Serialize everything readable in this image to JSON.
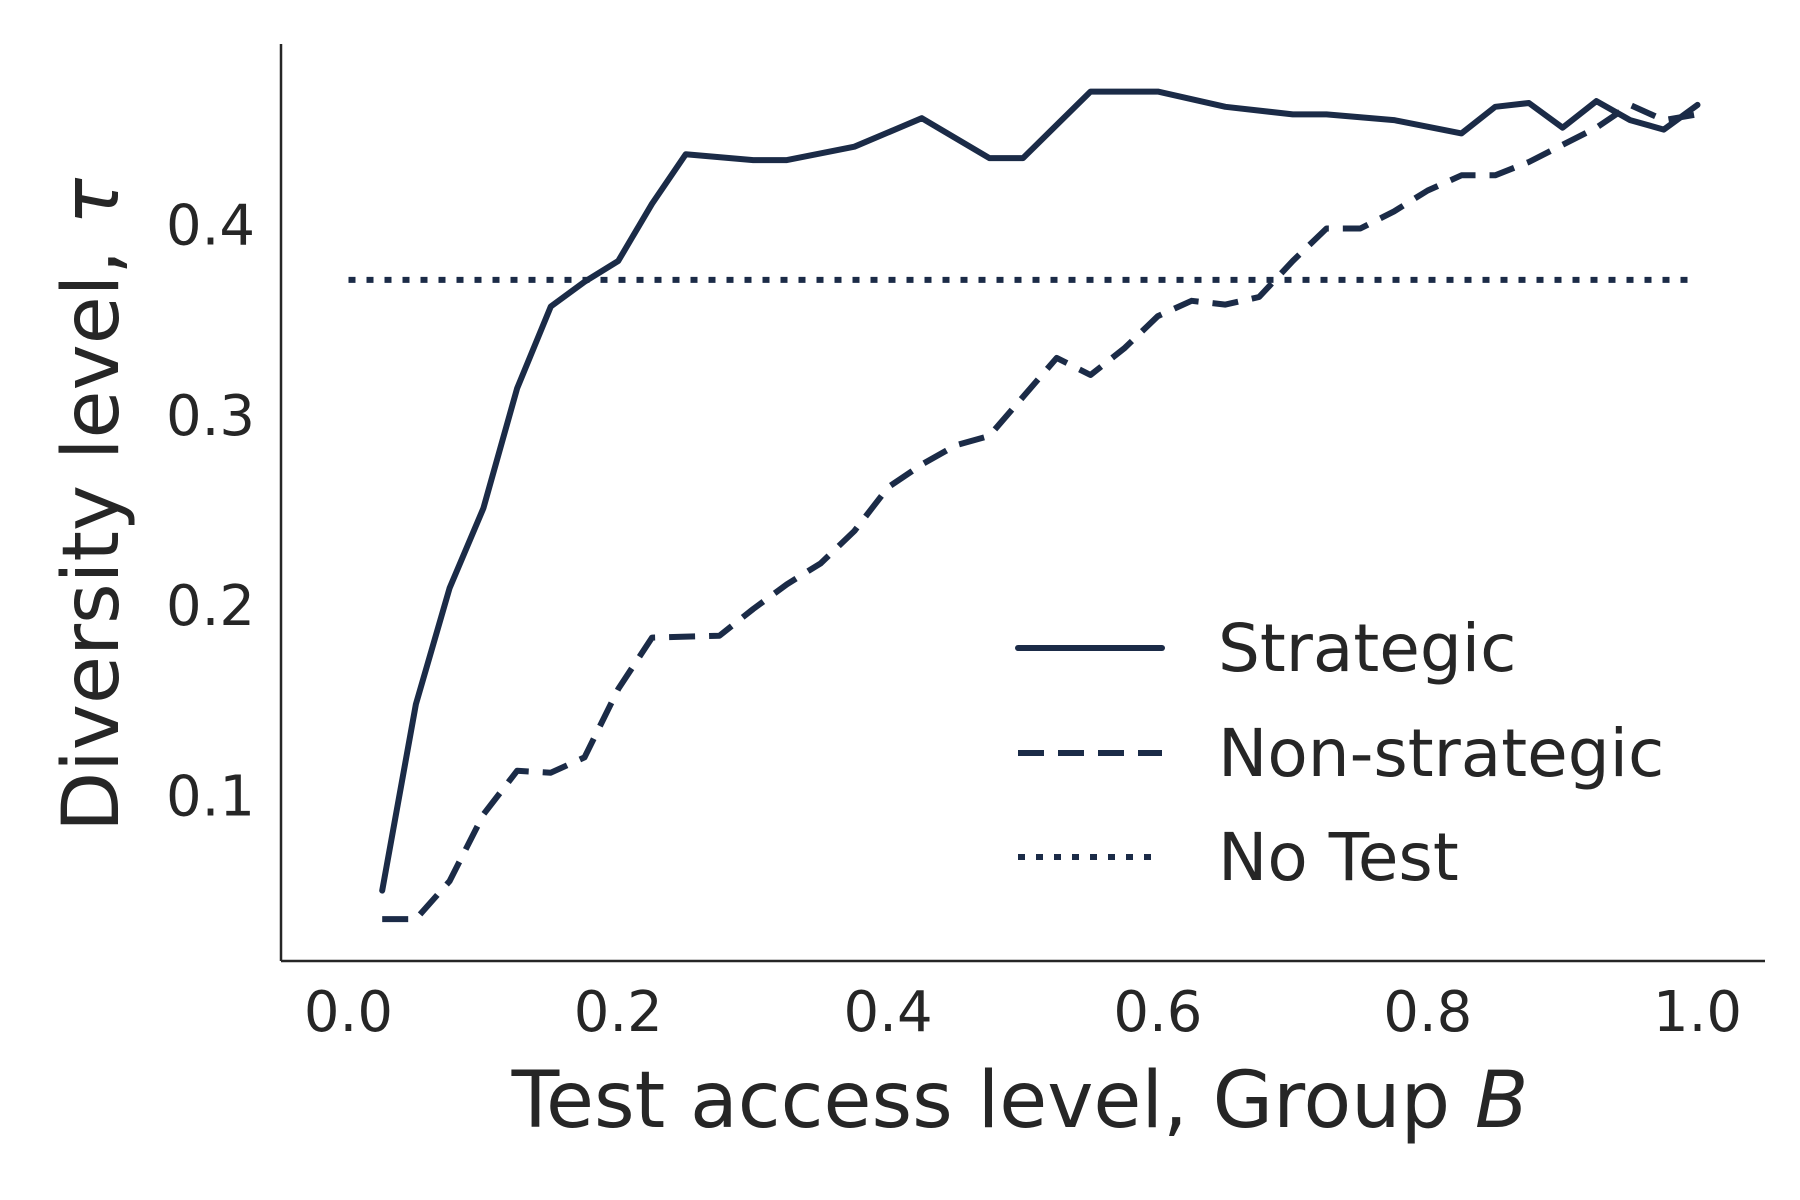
{
  "chart_data": {
    "type": "line",
    "xlabel": {
      "text": "Test access level, Group ",
      "italic": "B"
    },
    "ylabel": {
      "text": "Diversity level, ",
      "italic": "τ"
    },
    "xlim": [
      -0.05,
      1.05
    ],
    "ylim": [
      0.013,
      0.495
    ],
    "xticks": [
      0.0,
      0.2,
      0.4,
      0.6,
      0.8,
      1.0
    ],
    "xtick_labels": [
      "0.0",
      "0.2",
      "0.4",
      "0.6",
      "0.8",
      "1.0"
    ],
    "yticks": [
      0.1,
      0.2,
      0.3,
      0.4
    ],
    "ytick_labels": [
      "0.1",
      "0.2",
      "0.3",
      "0.4"
    ],
    "grid": false,
    "legend_position": "lower-right",
    "line_color": "#1b2b47",
    "series": [
      {
        "name": "Strategic",
        "style": "solid",
        "x": [
          0.025,
          0.05,
          0.075,
          0.1,
          0.125,
          0.15,
          0.175,
          0.2,
          0.225,
          0.25,
          0.3,
          0.325,
          0.375,
          0.425,
          0.475,
          0.5,
          0.55,
          0.6,
          0.65,
          0.7,
          0.725,
          0.775,
          0.825,
          0.85,
          0.875,
          0.9,
          0.925,
          0.95,
          0.975,
          1.0
        ],
        "y": [
          0.05,
          0.148,
          0.209,
          0.251,
          0.314,
          0.357,
          0.37,
          0.381,
          0.411,
          0.437,
          0.434,
          0.434,
          0.441,
          0.456,
          0.435,
          0.435,
          0.47,
          0.47,
          0.462,
          0.458,
          0.458,
          0.455,
          0.448,
          0.462,
          0.464,
          0.451,
          0.465,
          0.455,
          0.45,
          0.463
        ]
      },
      {
        "name": "Non-strategic",
        "style": "dashed",
        "x": [
          0.025,
          0.05,
          0.075,
          0.1,
          0.125,
          0.15,
          0.175,
          0.2,
          0.225,
          0.275,
          0.3,
          0.325,
          0.35,
          0.375,
          0.4,
          0.425,
          0.45,
          0.475,
          0.525,
          0.55,
          0.575,
          0.6,
          0.625,
          0.65,
          0.675,
          0.7,
          0.725,
          0.75,
          0.775,
          0.8,
          0.825,
          0.85,
          0.875,
          0.9,
          0.925,
          0.95,
          0.975,
          1.0
        ],
        "y": [
          0.035,
          0.035,
          0.055,
          0.09,
          0.113,
          0.112,
          0.12,
          0.156,
          0.183,
          0.184,
          0.198,
          0.211,
          0.222,
          0.239,
          0.262,
          0.274,
          0.284,
          0.289,
          0.33,
          0.321,
          0.335,
          0.352,
          0.36,
          0.358,
          0.362,
          0.381,
          0.398,
          0.398,
          0.407,
          0.418,
          0.426,
          0.426,
          0.433,
          0.442,
          0.451,
          0.463,
          0.455,
          0.458
        ]
      },
      {
        "name": "No Test",
        "style": "dotted",
        "x": [
          0.0,
          1.0
        ],
        "y": [
          0.371,
          0.371
        ]
      }
    ]
  }
}
